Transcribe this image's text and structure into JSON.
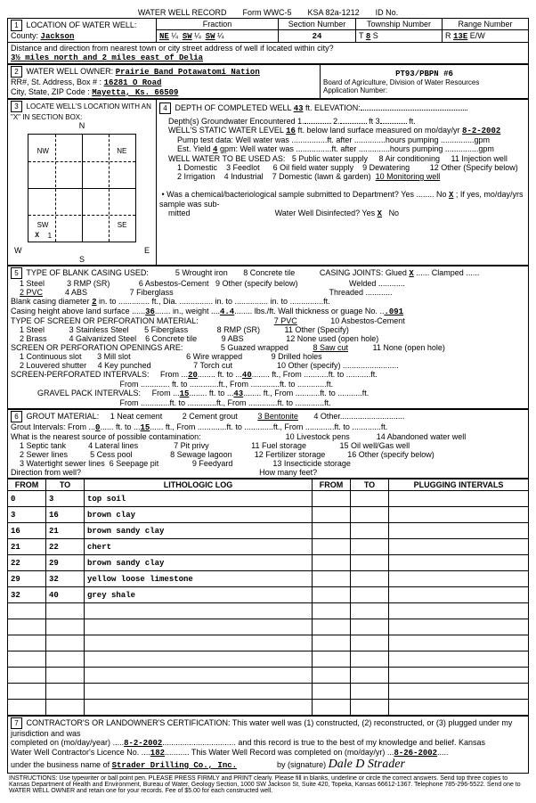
{
  "header": {
    "title": "WATER WELL RECORD",
    "form": "Form WWC-5",
    "ksa": "KSA 82a-1212",
    "idno_label": "ID No."
  },
  "loc": {
    "label1": "LOCATION OF WATER WELL:",
    "county_label": "County:",
    "county": "Jackson",
    "fraction": "Fraction",
    "f1": "NE",
    "q1": "¼",
    "f2": "SW",
    "q2": "¼",
    "f3": "SW",
    "q3": "¼",
    "sec_label": "Section Number",
    "sec": "24",
    "twp_label": "Township Number",
    "twp_t": "T",
    "twp": "8",
    "twp_s": "S",
    "rng_label": "Range Number",
    "rng_r": "R",
    "rng": "13E",
    "rng_ew": "E/W",
    "dir_label": "Distance and direction from nearest town or city street address of well if located within city?",
    "dir": "3½ miles north and 2 miles east of Delia"
  },
  "owner": {
    "label": "WATER WELL OWNER:",
    "name": "Prairie Band Potawatomi Nation",
    "rr_label": "RR#, St. Address, Box #",
    "rr": "16281 O Road",
    "city_label": "City, State, ZIP Code",
    "city": "Mayetta, Ks.  66509",
    "pt": "PT93/PBPN #6",
    "board": "Board of Agriculture, Division of Water Resources",
    "appno_label": "Application Number:"
  },
  "sec3": {
    "label": "LOCATE WELL'S LOCATION WITH AN \"X\" IN SECTION BOX:",
    "N": "N",
    "S": "S",
    "E": "E",
    "W": "W",
    "NW": "NW",
    "NE": "NE",
    "SW": "SW",
    "SE": "SE",
    "X": "X",
    "one": "1"
  },
  "sec4": {
    "label": "DEPTH OF COMPLETED WELL",
    "depth": "43",
    "ft_elev": "ft. ELEVATION:",
    "depths_label": "Depth(s) Groundwater Encountered",
    "d1": "1.",
    "d2": "2.",
    "d3": "3.",
    "ft3": "ft 3",
    "static_label": "WELL'S STATIC WATER LEVEL",
    "static": "16",
    "static_rest": "ft. below land surface measured on mo/day/yr",
    "static_date": "8-2-2002",
    "pump": "Pump test data:   Well water was ................ft. after ..............hours pumping ...............gpm",
    "est": "Est. Yield ",
    "est_val": "4",
    "est_rest": " gpm:   Well water was ................ft. after ..............hours pumping ...............gpm",
    "use_label": "WELL WATER TO BE USED AS:",
    "u1": "1 Domestic",
    "u2": "2 Irrigation",
    "u3": "3 Feedlot",
    "u4": "4 Industrial",
    "u5": "5 Public water supply",
    "u6": "6 Oil field water supply",
    "u7": "7 Domestic (lawn & garden)",
    "u8": "8 Air conditioning",
    "u9": "9 Dewatering",
    "u10": "10 Monitoring well",
    "u11": "11 Injection well",
    "u12": "12 Other (Specify below)",
    "chem": "Was a chemical/bacteriological sample submitted to Department? Yes ........ No",
    "chem_x": "X",
    "chem2": "; If yes, mo/day/yrs sample was sub-",
    "mitted": "mitted",
    "disinfect": "Water Well Disinfected? Yes",
    "dis_x": "X",
    "no": "No"
  },
  "sec5": {
    "label": "TYPE OF BLANK CASING USED:",
    "c1": "1 Steel",
    "c2": "2 PVC",
    "c3": "3 RMP (SR)",
    "c4": "4 ABS",
    "c5": "5 Wrought iron",
    "c6": "6 Asbestos-Cement",
    "c7": "7 Fiberglass",
    "c8": "8 Concrete tile",
    "c9": "9 Other (specify below)",
    "joints": "CASING JOINTS: Glued",
    "jx": "X",
    "clamped": "Clamped ......",
    "welded": "Welded ............",
    "threaded": "Threaded ............",
    "diam": "Blank casing diameter",
    "two": "2",
    "in": "in. to",
    "dia2": "ft., Dia. ............... in. to ............... in. to ...............ft.",
    "height_label": "Casing height above land surface",
    "height": "36",
    "wt_label": "in., weight",
    "wt": "4.4",
    "wall_label": "lbs./ft. Wall thickness or guage No.",
    "wall": ".091",
    "screen_label": "TYPE OF SCREEN OR PERFORATION MATERIAL:",
    "s1": "1 Steel",
    "s2": "2 Brass",
    "s3": "3 Stainless Steel",
    "s4": "4 Galvanized Steel",
    "s5": "5 Fiberglass",
    "s6": "6 Concrete tile",
    "s7": "7 PVC",
    "s8": "8 RMP (SR)",
    "s9": "9 ABS",
    "s10": "10 Asbestos-Cement",
    "s11": "11 Other (Specify)",
    "s12": "12 None used (open hole)",
    "open_label": "SCREEN OR PERFORATION OPENINGS ARE:",
    "o1": "1 Continuous slot",
    "o2": "2 Louvered shutter",
    "o3": "3 Mill slot",
    "o4": "4 Key punched",
    "o5": "5 Guazed wrapped",
    "o6": "6 Wire wrapped",
    "o7": "7 Torch cut",
    "o8": "8 Saw cut",
    "o9": "9 Drilled holes",
    "o10": "10 Other (specify) .........................",
    "o11": "11 None (open hole)",
    "spi": "SCREEN-PERFORATED INTERVALS:",
    "from": "From",
    "to": "ft. to",
    "spi_f1": "20",
    "spi_t1": "40",
    "spi_row2": "ft. to .............ft., From .............ft. to .............ft.",
    "gpi": "GRAVEL PACK INTERVALS:",
    "gpi_f1": "15",
    "gpi_t1": "43"
  },
  "sec6": {
    "label": "GROUT MATERIAL:",
    "g1": "1 Neat cement",
    "g2": "2 Cement grout",
    "g3": "3 Bentonite",
    "g4": "4 Other.............................",
    "gi": "Grout Intervals:   From",
    "gi0": "0",
    "gift": "ft. to",
    "gi15": "15",
    "girest": "ft., From .............ft. to .............ft., From .............ft. to .............ft.",
    "contam": "What is the nearest source of possible contamination:",
    "c1": "1 Septic tank",
    "c2": "2 Sewer lines",
    "c3": "3 Watertight sewer lines",
    "c4": "4 Lateral lines",
    "c5": "5 Cess pool",
    "c6": "6 Seepage pit",
    "c7": "7 Pit privy",
    "c8": "8 Sewage lagoon",
    "c9": "9 Feedyard",
    "c10": "10 Livestock pens",
    "c11": "11 Fuel storage",
    "c12": "12 Fertilizer storage",
    "c13": "13 Insecticide storage",
    "c14": "14 Abandoned water well",
    "c15": "15 Oil well/Gas well",
    "c16": "16 Other (specify below)",
    "dir": "Direction from well?",
    "feet": "How many feet?"
  },
  "log": {
    "h_from": "FROM",
    "h_to": "TO",
    "h_lith": "LITHOLOGIC LOG",
    "h_from2": "FROM",
    "h_to2": "TO",
    "h_plug": "PLUGGING INTERVALS",
    "rows": [
      {
        "f": "0",
        "t": "3",
        "l": "top soil"
      },
      {
        "f": "3",
        "t": "16",
        "l": "brown clay"
      },
      {
        "f": "16",
        "t": "21",
        "l": "brown sandy clay"
      },
      {
        "f": "21",
        "t": "22",
        "l": "chert"
      },
      {
        "f": "22",
        "t": "29",
        "l": "brown sandy clay"
      },
      {
        "f": "29",
        "t": "32",
        "l": "yellow loose limestone"
      },
      {
        "f": "32",
        "t": "40",
        "l": "grey shale"
      },
      {
        "f": "",
        "t": "",
        "l": ""
      },
      {
        "f": "",
        "t": "",
        "l": ""
      },
      {
        "f": "",
        "t": "",
        "l": ""
      },
      {
        "f": "",
        "t": "",
        "l": ""
      },
      {
        "f": "",
        "t": "",
        "l": ""
      },
      {
        "f": "",
        "t": "",
        "l": ""
      },
      {
        "f": "",
        "t": "",
        "l": ""
      }
    ]
  },
  "sec7": {
    "label": "CONTRACTOR'S OR LANDOWNER'S CERTIFICATION: This water well was (1) constructed, (2) reconstructed, or (3) plugged under my jurisdiction and was",
    "completed": "completed on (mo/day/year)",
    "d1": "8-2-2002",
    "rec": "and this record is true to the best of my knowledge and belief. Kansas",
    "lic": "Water Well Contractor's Licence No.",
    "licno": "182",
    "comp2": "This Water Well Record was completed on (mo/day/yr)",
    "d2": "8-26-2002",
    "under": "under the business name of",
    "biz": "Strader Drilling Co., Inc.",
    "sig_label": "by (signature)",
    "sig": "Dale D Strader"
  },
  "instr": "INSTRUCTIONS: Use typewriter or ball point pen. PLEASE PRESS FIRMLY and PRINT clearly. Please fill in blanks, underline or circle the correct answers. Send top three copies to Kansas Department of Health and Environment, Bureau of Water, Geology Section, 1000 SW Jackson St, Suite 420, Topeka, Kansas 66612-1367. Telephone 785-296-5522. Send one to WATER WELL OWNER and retain one for your records. Fee of $5.00 for each constructed well."
}
